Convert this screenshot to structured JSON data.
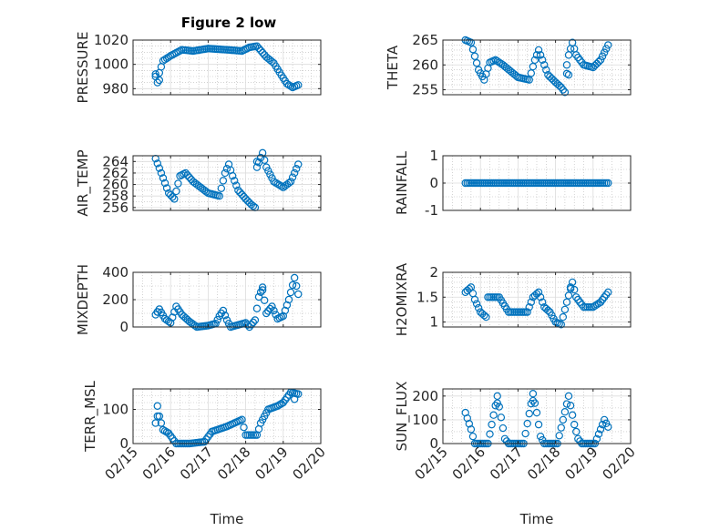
{
  "figure_title": "Figure 2 low",
  "x_axis": {
    "label": "Time",
    "range": [
      0,
      5
    ],
    "ticks": [
      0,
      1,
      2,
      3,
      4,
      5
    ],
    "tick_labels": [
      "02/15",
      "02/16",
      "02/17",
      "02/18",
      "02/19",
      "02/20"
    ]
  },
  "marker_color": "#0072BD",
  "chart_data": [
    {
      "type": "scatter",
      "name": "pressure",
      "ylabel": "PRESSURE",
      "ylim": [
        975,
        1020
      ],
      "yticks": [
        980,
        1000,
        1020
      ],
      "ytick_labels": [
        "980",
        "1000",
        "1020"
      ],
      "minor_yticks": [
        985,
        990,
        995,
        1005,
        1010,
        1015
      ],
      "keyframes": [
        [
          0.6,
          990
        ],
        [
          0.65,
          985
        ],
        [
          0.7,
          993
        ],
        [
          0.8,
          1003
        ],
        [
          1.0,
          1007
        ],
        [
          1.3,
          1012
        ],
        [
          1.6,
          1011
        ],
        [
          2.0,
          1013
        ],
        [
          2.5,
          1012
        ],
        [
          2.9,
          1011
        ],
        [
          3.1,
          1014
        ],
        [
          3.3,
          1015
        ],
        [
          3.55,
          1006
        ],
        [
          3.75,
          1001
        ],
        [
          3.95,
          991
        ],
        [
          4.1,
          984
        ],
        [
          4.25,
          981
        ],
        [
          4.4,
          983
        ]
      ],
      "extra_points": [
        [
          0.6,
          992
        ],
        [
          0.7,
          987
        ]
      ]
    },
    {
      "type": "scatter",
      "name": "theta",
      "ylabel": "THETA",
      "ylim": [
        254,
        265
      ],
      "yticks": [
        255,
        260,
        265
      ],
      "ytick_labels": [
        "255",
        "260",
        "265"
      ],
      "minor_yticks": [
        256,
        257,
        258,
        259,
        261,
        262,
        263,
        264
      ],
      "keyframes": [
        [
          0.6,
          265
        ],
        [
          0.75,
          264.5
        ],
        [
          0.95,
          259
        ],
        [
          1.1,
          257
        ],
        [
          1.25,
          260.5
        ],
        [
          1.4,
          261
        ],
        [
          1.6,
          260
        ],
        [
          2.0,
          257.5
        ],
        [
          2.3,
          257
        ],
        [
          2.45,
          261
        ],
        [
          2.55,
          263
        ],
        [
          2.65,
          261
        ],
        [
          2.8,
          258
        ],
        [
          3.0,
          256.5
        ],
        [
          3.15,
          255.5
        ],
        [
          3.25,
          254.5
        ],
        [
          3.35,
          262
        ],
        [
          3.45,
          264.5
        ],
        [
          3.55,
          262
        ],
        [
          3.75,
          260
        ],
        [
          4.0,
          259.5
        ],
        [
          4.2,
          261
        ],
        [
          4.4,
          264
        ]
      ],
      "extra_points": [
        [
          3.3,
          260
        ],
        [
          3.35,
          258
        ]
      ]
    },
    {
      "type": "scatter",
      "name": "air_temp",
      "ylabel": "AIR_TEMP",
      "ylim": [
        255.5,
        265
      ],
      "yticks": [
        256,
        258,
        260,
        262,
        264
      ],
      "ytick_labels": [
        "256",
        "258",
        "260",
        "262",
        "264"
      ],
      "minor_yticks": [
        257,
        259,
        261,
        263
      ],
      "keyframes": [
        [
          0.6,
          264.5
        ],
        [
          0.75,
          262
        ],
        [
          0.95,
          258.5
        ],
        [
          1.1,
          257.5
        ],
        [
          1.25,
          261.5
        ],
        [
          1.4,
          262
        ],
        [
          1.6,
          260.5
        ],
        [
          2.0,
          258.5
        ],
        [
          2.3,
          258
        ],
        [
          2.45,
          262
        ],
        [
          2.55,
          263.5
        ],
        [
          2.65,
          261.5
        ],
        [
          2.8,
          259
        ],
        [
          3.0,
          257.5
        ],
        [
          3.15,
          256.5
        ],
        [
          3.25,
          256
        ],
        [
          3.3,
          263
        ],
        [
          3.45,
          265.5
        ],
        [
          3.55,
          263
        ],
        [
          3.75,
          260.5
        ],
        [
          4.0,
          259.5
        ],
        [
          4.2,
          260.5
        ],
        [
          4.4,
          263.5
        ]
      ],
      "extra_points": [
        [
          3.3,
          264
        ]
      ]
    },
    {
      "type": "scatter",
      "name": "rainfall",
      "ylabel": "RAINFALL",
      "ylim": [
        -1,
        1
      ],
      "yticks": [
        -1,
        0,
        1
      ],
      "ytick_labels": [
        "-1",
        "0",
        "1"
      ],
      "minor_yticks": [
        -0.5,
        0.5
      ],
      "keyframes": [
        [
          0.6,
          0
        ],
        [
          4.4,
          0
        ]
      ],
      "extra_points": []
    },
    {
      "type": "scatter",
      "name": "mixdepth",
      "ylabel": "MIXDEPTH",
      "ylim": [
        0,
        400
      ],
      "yticks": [
        0,
        200,
        400
      ],
      "ytick_labels": [
        "0",
        "200",
        "400"
      ],
      "minor_yticks": [
        100,
        300
      ],
      "keyframes": [
        [
          0.6,
          90
        ],
        [
          0.7,
          130
        ],
        [
          0.85,
          60
        ],
        [
          1.0,
          30
        ],
        [
          1.15,
          150
        ],
        [
          1.3,
          90
        ],
        [
          1.5,
          40
        ],
        [
          1.7,
          0
        ],
        [
          2.0,
          10
        ],
        [
          2.2,
          25
        ],
        [
          2.3,
          80
        ],
        [
          2.4,
          120
        ],
        [
          2.5,
          50
        ],
        [
          2.6,
          0
        ],
        [
          3.0,
          30
        ],
        [
          3.1,
          0
        ],
        [
          3.25,
          50
        ],
        [
          3.35,
          220
        ],
        [
          3.45,
          290
        ],
        [
          3.55,
          100
        ],
        [
          3.7,
          150
        ],
        [
          3.85,
          60
        ],
        [
          4.0,
          80
        ],
        [
          4.15,
          200
        ],
        [
          4.3,
          360
        ],
        [
          4.4,
          240
        ]
      ],
      "extra_points": [
        [
          0.65,
          110
        ],
        [
          3.45,
          270
        ]
      ]
    },
    {
      "type": "scatter",
      "name": "h2omixra",
      "ylabel": "H2OMIXRA",
      "ylim": [
        0.9,
        2
      ],
      "yticks": [
        1,
        1.5,
        2
      ],
      "ytick_labels": [
        "1",
        "1.5",
        "2"
      ],
      "minor_yticks": [
        1.1,
        1.2,
        1.3,
        1.4,
        1.6,
        1.7,
        1.8,
        1.9
      ],
      "keyframes": [
        [
          0.6,
          1.6
        ],
        [
          0.75,
          1.7
        ],
        [
          0.85,
          1.45
        ],
        [
          1.0,
          1.2
        ],
        [
          1.15,
          1.1
        ],
        [
          1.2,
          1.5
        ],
        [
          1.5,
          1.5
        ],
        [
          1.75,
          1.2
        ],
        [
          2.0,
          1.2
        ],
        [
          2.25,
          1.2
        ],
        [
          2.4,
          1.5
        ],
        [
          2.55,
          1.6
        ],
        [
          2.7,
          1.3
        ],
        [
          2.85,
          1.2
        ],
        [
          3.0,
          1.0
        ],
        [
          3.15,
          0.95
        ],
        [
          3.3,
          1.4
        ],
        [
          3.45,
          1.8
        ],
        [
          3.55,
          1.5
        ],
        [
          3.75,
          1.3
        ],
        [
          4.0,
          1.3
        ],
        [
          4.2,
          1.4
        ],
        [
          4.4,
          1.6
        ]
      ],
      "extra_points": [
        [
          3.4,
          1.7
        ]
      ]
    },
    {
      "type": "scatter",
      "name": "terr_msl",
      "ylabel": "TERR_MSL",
      "ylim": [
        0,
        160
      ],
      "yticks": [
        0,
        100
      ],
      "ytick_labels": [
        "0",
        "100"
      ],
      "minor_yticks": [
        20,
        40,
        60,
        80,
        120,
        140
      ],
      "keyframes": [
        [
          0.6,
          60
        ],
        [
          0.65,
          110
        ],
        [
          0.7,
          80
        ],
        [
          0.8,
          40
        ],
        [
          0.95,
          30
        ],
        [
          1.05,
          15
        ],
        [
          1.15,
          0
        ],
        [
          1.5,
          0
        ],
        [
          1.9,
          5
        ],
        [
          2.0,
          20
        ],
        [
          2.1,
          35
        ],
        [
          2.5,
          50
        ],
        [
          2.9,
          70
        ],
        [
          3.0,
          25
        ],
        [
          3.3,
          25
        ],
        [
          3.4,
          60
        ],
        [
          3.6,
          100
        ],
        [
          3.85,
          110
        ],
        [
          4.0,
          120
        ],
        [
          4.2,
          150
        ],
        [
          4.4,
          145
        ]
      ],
      "extra_points": [
        [
          0.65,
          80
        ],
        [
          4.3,
          130
        ]
      ]
    },
    {
      "type": "scatter",
      "name": "sun_flux",
      "ylabel": "SUN_FLUX",
      "ylim": [
        0,
        230
      ],
      "yticks": [
        0,
        100,
        200
      ],
      "ytick_labels": [
        "0",
        "100",
        "200"
      ],
      "minor_yticks": [
        50,
        150
      ],
      "keyframes": [
        [
          0.6,
          130
        ],
        [
          0.75,
          60
        ],
        [
          0.85,
          0
        ],
        [
          1.2,
          0
        ],
        [
          1.45,
          200
        ],
        [
          1.55,
          110
        ],
        [
          1.65,
          20
        ],
        [
          1.75,
          0
        ],
        [
          2.15,
          0
        ],
        [
          2.4,
          210
        ],
        [
          2.5,
          130
        ],
        [
          2.6,
          30
        ],
        [
          2.7,
          0
        ],
        [
          3.05,
          0
        ],
        [
          3.35,
          200
        ],
        [
          3.5,
          80
        ],
        [
          3.6,
          20
        ],
        [
          3.7,
          0
        ],
        [
          4.05,
          0
        ],
        [
          4.3,
          100
        ],
        [
          4.4,
          70
        ]
      ],
      "extra_points": [
        [
          1.45,
          170
        ],
        [
          2.4,
          180
        ]
      ]
    }
  ]
}
